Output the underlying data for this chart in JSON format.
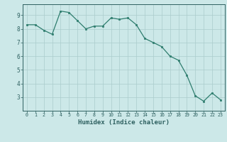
{
  "x": [
    0,
    1,
    2,
    3,
    4,
    5,
    6,
    7,
    8,
    9,
    10,
    11,
    12,
    13,
    14,
    15,
    16,
    17,
    18,
    19,
    20,
    21,
    22,
    23
  ],
  "y": [
    8.3,
    8.3,
    7.9,
    7.6,
    9.3,
    9.2,
    8.6,
    8.0,
    8.2,
    8.2,
    8.8,
    8.7,
    8.8,
    8.3,
    7.3,
    7.0,
    6.7,
    6.0,
    5.7,
    4.6,
    3.1,
    2.7,
    3.3,
    2.8
  ],
  "line_color": "#2e7d6e",
  "marker_color": "#2e7d6e",
  "bg_color": "#cce8e8",
  "grid_color": "#aacccc",
  "axis_color": "#2e6060",
  "xlabel": "Humidex (Indice chaleur)",
  "ylim": [
    2.0,
    9.8
  ],
  "xlim": [
    -0.5,
    23.5
  ],
  "yticks": [
    3,
    4,
    5,
    6,
    7,
    8,
    9
  ],
  "xticks": [
    0,
    1,
    2,
    3,
    4,
    5,
    6,
    7,
    8,
    9,
    10,
    11,
    12,
    13,
    14,
    15,
    16,
    17,
    18,
    19,
    20,
    21,
    22,
    23
  ]
}
